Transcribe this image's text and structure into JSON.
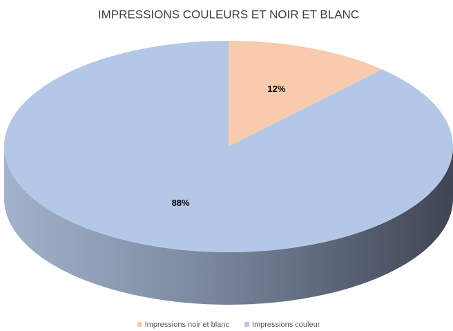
{
  "chart_data": {
    "type": "pie",
    "title": "IMPRESSIONS COULEURS ET NOIR ET BLANC",
    "categories": [
      "Impressions noir et blanc",
      "Impressions couleur"
    ],
    "values": [
      12,
      88
    ],
    "value_labels": [
      "12%",
      "88%"
    ],
    "colors": [
      "#f8cbad",
      "#b4c7e7"
    ],
    "legend": "bottom"
  }
}
